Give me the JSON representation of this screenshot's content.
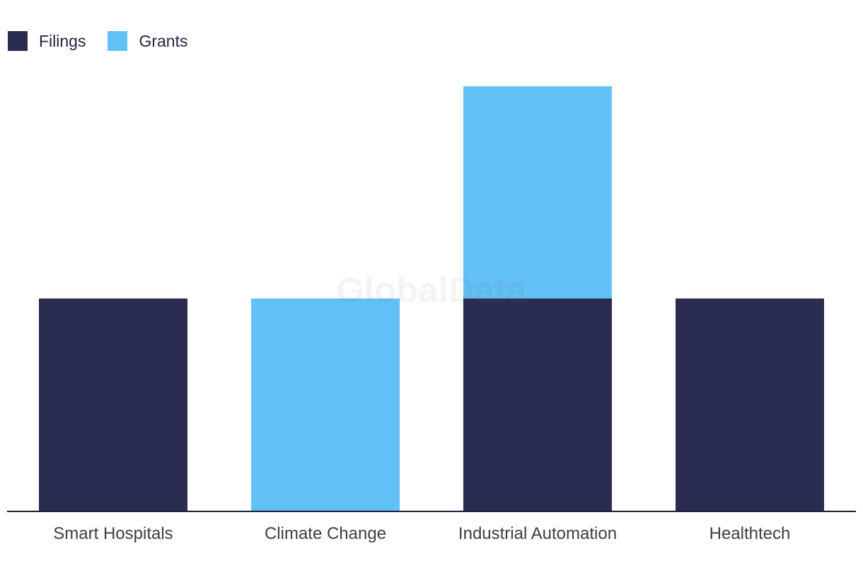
{
  "chart_data": {
    "type": "bar",
    "subtype": "stacked-vertical",
    "title": "",
    "xlabel": "",
    "ylabel": "",
    "y_axis_visible": false,
    "grid": false,
    "legend_position": "top-left",
    "ylim": [
      0,
      2
    ],
    "categories": [
      "Smart Hospitals",
      "Climate Change",
      "Industrial Automation",
      "Healthtech"
    ],
    "series": [
      {
        "name": "Filings",
        "color": "#2A2C52",
        "values": [
          1,
          0,
          1,
          1
        ]
      },
      {
        "name": "Grants",
        "color": "#61C0F6",
        "values": [
          0,
          1,
          1,
          0
        ]
      }
    ]
  },
  "watermark": {
    "text": "GlobalData"
  },
  "colors": {
    "background": "#FFFFFF",
    "axis_line": "#191D36",
    "x_label_text": "#3E3E3E",
    "legend_text": "#23233E"
  }
}
